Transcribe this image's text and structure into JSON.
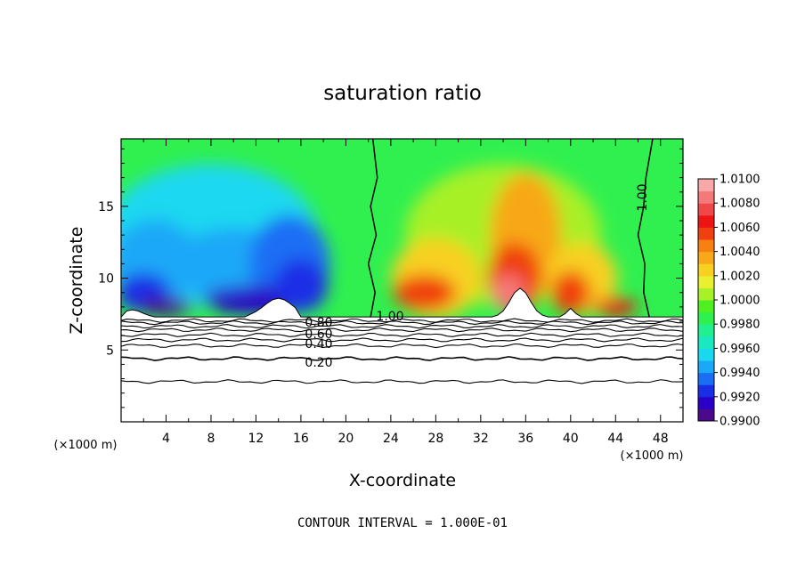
{
  "chart_data": {
    "type": "heatmap",
    "title": "saturation ratio",
    "xlabel": "X-coordinate",
    "ylabel": "Z-coordinate",
    "x_unit_label": "(×1000 m)",
    "y_unit_label": "(×1000 m)",
    "xlim": [
      0,
      50
    ],
    "ylim": [
      0,
      19.7
    ],
    "x_ticks": [
      4,
      8,
      12,
      16,
      20,
      24,
      28,
      32,
      36,
      40,
      44,
      48
    ],
    "x_tick_labels": [
      "4",
      "8",
      "12",
      "16",
      "20",
      "24",
      "28",
      "32",
      "36",
      "40",
      "44",
      "48"
    ],
    "y_ticks": [
      5,
      10,
      15
    ],
    "y_tick_labels": [
      "5",
      "10",
      "15"
    ],
    "colorbar": {
      "min": 0.99,
      "max": 1.01,
      "step": 0.001,
      "tick_values": [
        0.99,
        0.992,
        0.994,
        0.996,
        0.998,
        1.0,
        1.002,
        1.004,
        1.006,
        1.008,
        1.01
      ],
      "tick_labels": [
        "0.9900",
        "0.9920",
        "0.9940",
        "0.9960",
        "0.9980",
        "1.0000",
        "1.0020",
        "1.0040",
        "1.0060",
        "1.0080",
        "1.0100"
      ],
      "colors": [
        "#4a0a8a",
        "#2a00c8",
        "#1a2ee6",
        "#1a6ef4",
        "#1aa8f8",
        "#1ad8f0",
        "#1ae8c0",
        "#20f090",
        "#30f050",
        "#50f020",
        "#a8f028",
        "#e8f030",
        "#f8d020",
        "#f8a818",
        "#f88010",
        "#f04010",
        "#ee1414",
        "#f04848",
        "#f47a7a",
        "#f8a8a8"
      ]
    },
    "contour_interval_note": "CONTOUR INTERVAL = 1.000E-01",
    "contour_lines_below_cloud_base": [
      {
        "level_label": "0.80",
        "z": 6.9
      },
      {
        "level_label": "0.60",
        "z": 6.4
      },
      {
        "level_label": "0.40",
        "z": 5.7
      },
      {
        "level_label": "0.20",
        "z": 4.4
      },
      {
        "level_label": "",
        "z": 2.8
      }
    ],
    "contour_1_00_labels": [
      "1.00",
      "1.00"
    ]
  }
}
